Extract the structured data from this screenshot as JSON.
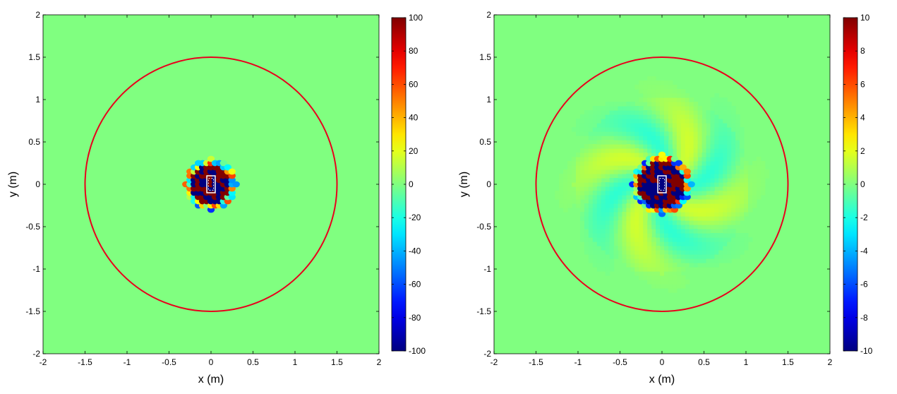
{
  "chart_data": [
    {
      "type": "heatmap",
      "xlabel": "x (m)",
      "ylabel": "y (m)",
      "xlim": [
        -2,
        2
      ],
      "ylim": [
        -2,
        2
      ],
      "xticks": [
        -2,
        -1.5,
        -1,
        -0.5,
        0,
        0.5,
        1,
        1.5,
        2
      ],
      "yticks": [
        -2,
        -1.5,
        -1,
        -0.5,
        0,
        0.5,
        1,
        1.5,
        2
      ],
      "colorbar": {
        "min": -100,
        "max": 100,
        "ticks": [
          -100,
          -80,
          -60,
          -40,
          -20,
          0,
          20,
          40,
          60,
          80,
          100
        ]
      },
      "colormap": "jet",
      "background_value": 0,
      "circle": {
        "center": [
          0,
          0
        ],
        "radius": 1.5,
        "color": "#e8001c"
      },
      "core_region": {
        "radius": 0.3,
        "pattern": "alternating saturated extremes"
      },
      "spiral": {
        "present": false
      }
    },
    {
      "type": "heatmap",
      "xlabel": "x (m)",
      "ylabel": "y (m)",
      "xlim": [
        -2,
        2
      ],
      "ylim": [
        -2,
        2
      ],
      "xticks": [
        -2,
        -1.5,
        -1,
        -0.5,
        0,
        0.5,
        1,
        1.5,
        2
      ],
      "yticks": [
        -2,
        -1.5,
        -1,
        -0.5,
        0,
        0.5,
        1,
        1.5,
        2
      ],
      "colorbar": {
        "min": -10,
        "max": 10,
        "ticks": [
          -10,
          -8,
          -6,
          -4,
          -2,
          0,
          2,
          4,
          6,
          8,
          10
        ]
      },
      "colormap": "jet",
      "background_value": 0,
      "circle": {
        "center": [
          0,
          0
        ],
        "radius": 1.5,
        "color": "#e8001c"
      },
      "core_region": {
        "radius": 0.35,
        "pattern": "alternating saturated extremes"
      },
      "spiral": {
        "present": true,
        "arms": 4,
        "amplitude": 1.6,
        "extent": 1.3
      }
    }
  ]
}
